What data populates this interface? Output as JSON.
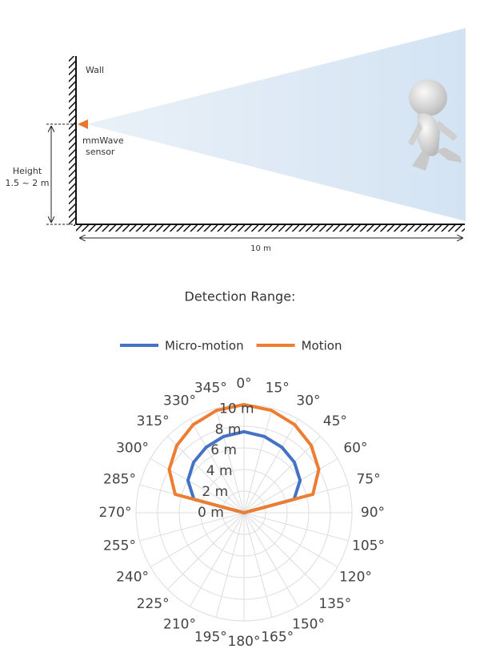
{
  "diagram": {
    "wall_label": "Wall",
    "sensor_label": [
      "mmWave",
      "sensor"
    ],
    "height_label": [
      "Height",
      "1.5 ~ 2 m"
    ],
    "distance_label": "10 m"
  },
  "chart_data": {
    "type": "polar",
    "title": "Detection Range:",
    "theta": [
      0,
      15,
      30,
      45,
      60,
      75,
      90,
      105,
      120,
      135,
      150,
      165,
      180,
      195,
      210,
      225,
      240,
      255,
      270,
      285,
      300,
      315,
      330,
      345
    ],
    "series": [
      {
        "name": "Micro-motion",
        "color": "#4472c4",
        "values": [
          7.5,
          7.3,
          7,
          6.6,
          6,
          4.8,
          0,
          0,
          0,
          0,
          0,
          0,
          0,
          0,
          0,
          0,
          0,
          0,
          0,
          4.8,
          6,
          6.6,
          7,
          7.3
        ]
      },
      {
        "name": "Motion",
        "color": "#ed7d31",
        "values": [
          10,
          9.8,
          9.4,
          8.8,
          8,
          6.6,
          0,
          0,
          0,
          0,
          0,
          0,
          0,
          0,
          0,
          0,
          0,
          0,
          0,
          6.6,
          8,
          8.8,
          9.4,
          9.8
        ]
      }
    ],
    "rlim": [
      0,
      10
    ],
    "rticks": [
      {
        "value": 0,
        "label": "0 m"
      },
      {
        "value": 2,
        "label": "2 m"
      },
      {
        "value": 4,
        "label": "4 m"
      },
      {
        "value": 6,
        "label": "6 m"
      },
      {
        "value": 8,
        "label": "8 m"
      },
      {
        "value": 10,
        "label": "10 m"
      }
    ],
    "thetaticks": [
      {
        "value": 0,
        "label": "0°"
      },
      {
        "value": 15,
        "label": "15°"
      },
      {
        "value": 30,
        "label": "30°"
      },
      {
        "value": 45,
        "label": "45°"
      },
      {
        "value": 60,
        "label": "60°"
      },
      {
        "value": 75,
        "label": "75°"
      },
      {
        "value": 90,
        "label": "90°"
      },
      {
        "value": 105,
        "label": "105°"
      },
      {
        "value": 120,
        "label": "120°"
      },
      {
        "value": 135,
        "label": "135°"
      },
      {
        "value": 150,
        "label": "150°"
      },
      {
        "value": 165,
        "label": "165°"
      },
      {
        "value": 180,
        "label": "180°"
      },
      {
        "value": 195,
        "label": "195°"
      },
      {
        "value": 210,
        "label": "210°"
      },
      {
        "value": 225,
        "label": "225°"
      },
      {
        "value": 240,
        "label": "240°"
      },
      {
        "value": 255,
        "label": "255°"
      },
      {
        "value": 270,
        "label": "270°"
      },
      {
        "value": 285,
        "label": "285°"
      },
      {
        "value": 300,
        "label": "300°"
      },
      {
        "value": 315,
        "label": "315°"
      },
      {
        "value": 330,
        "label": "330°"
      },
      {
        "value": 345,
        "label": "345°"
      }
    ],
    "grid": true,
    "legend": "top"
  }
}
